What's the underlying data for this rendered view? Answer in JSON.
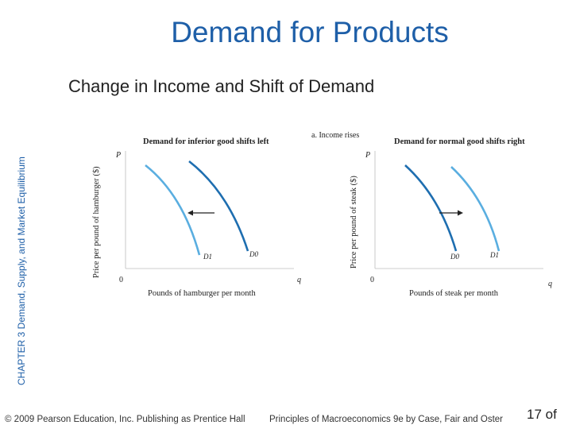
{
  "slide": {
    "title": "Demand for Products",
    "subtitle": "Change in Income and Shift of Demand",
    "chapter_label": "CHAPTER 3  Demand, Supply, and Market Equilibrium",
    "footer_left": "© 2009 Pearson Education, Inc. Publishing as Prentice Hall",
    "footer_right": "Principles of Macroeconomics 9e by Case, Fair and Oster",
    "page_number": "17 of"
  },
  "figure": {
    "panel_label": "a. Income rises",
    "left": {
      "heading": "Demand for inferior good shifts left",
      "y_axis_label": "Price per pound of hamburger ($)",
      "x_axis_label": "Pounds of hamburger per month",
      "y_symbol": "P",
      "x_symbol": "q",
      "origin": "0",
      "curve_new": "D1",
      "curve_old": "D0",
      "curve_new_color": "#5aaee0",
      "curve_old_color": "#1e6eb0"
    },
    "right": {
      "heading": "Demand for normal good shifts right",
      "y_axis_label": "Price per pound of steak ($)",
      "x_axis_label": "Pounds of steak per month",
      "y_symbol": "P",
      "x_symbol": "q",
      "origin": "0",
      "curve_old": "D0",
      "curve_new": "D1",
      "curve_old_color": "#1e6eb0",
      "curve_new_color": "#5aaee0"
    }
  }
}
